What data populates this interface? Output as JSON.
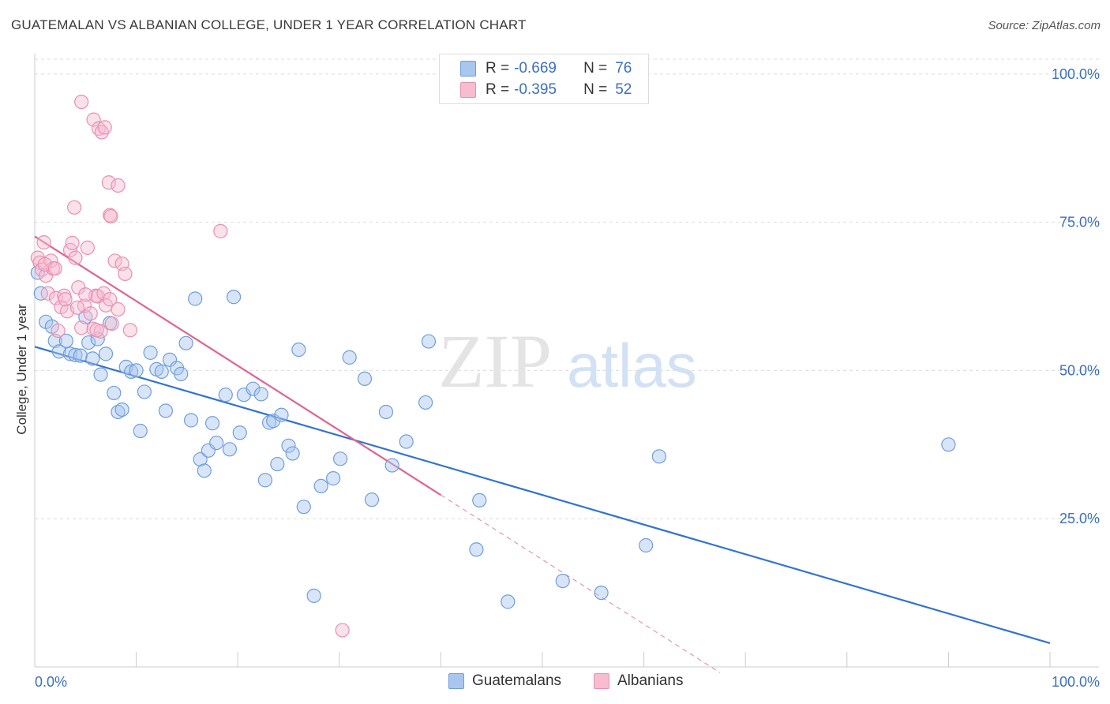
{
  "header": {
    "title": "GUATEMALAN VS ALBANIAN COLLEGE, UNDER 1 YEAR CORRELATION CHART",
    "source": "Source: ZipAtlas.com"
  },
  "legend": {
    "rows": [
      {
        "r_label": "R =",
        "r_value": "-0.669",
        "n_label": "N =",
        "n_value": "76"
      },
      {
        "r_label": "R =",
        "r_value": "-0.395",
        "n_label": "N =",
        "n_value": "52"
      }
    ]
  },
  "bottom_legend": {
    "guatemalans": "Guatemalans",
    "albanians": "Albanians"
  },
  "colors": {
    "blue_fill": "#a9c6ef",
    "blue_stroke": "#6f9edc",
    "blue_line": "#2f74cf",
    "pink_fill": "#f7bcd0",
    "pink_stroke": "#ea8fb0",
    "pink_line": "#e0648f",
    "axis_label": "#3a6fc4",
    "grid": "#dcdcdc"
  },
  "watermark": {
    "zip": "ZIP",
    "atlas": "atlas"
  },
  "chart_data": {
    "type": "scatter",
    "title": "GUATEMALAN VS ALBANIAN COLLEGE, UNDER 1 YEAR CORRELATION CHART",
    "xlabel": "",
    "ylabel": "College, Under 1 year",
    "xlim": [
      0,
      100
    ],
    "ylim": [
      0,
      102.5
    ],
    "x_tick_labels": {
      "left": "0.0%",
      "right": "100.0%"
    },
    "y_ticks": [
      {
        "value": 25,
        "label": "25.0%"
      },
      {
        "value": 50,
        "label": "50.0%"
      },
      {
        "value": 75,
        "label": "75.0%"
      },
      {
        "value": 100,
        "label": "100.0%"
      }
    ],
    "grid": true,
    "series": [
      {
        "name": "Guatemalans",
        "color": "blue",
        "r": -0.669,
        "n": 76,
        "trend": {
          "x0": 0,
          "y0": 54.0,
          "x1": 100,
          "y1": 4.0,
          "dashed_from": null
        },
        "points": [
          [
            0.6,
            63
          ],
          [
            1.1,
            58.2
          ],
          [
            1.7,
            57.4
          ],
          [
            2.0,
            55.0
          ],
          [
            2.4,
            53.2
          ],
          [
            3.1,
            55.0
          ],
          [
            3.5,
            52.8
          ],
          [
            4.0,
            52.6
          ],
          [
            4.5,
            52.5
          ],
          [
            5.0,
            59.0
          ],
          [
            5.3,
            54.7
          ],
          [
            5.7,
            52.0
          ],
          [
            6.2,
            55.3
          ],
          [
            6.5,
            49.3
          ],
          [
            7.0,
            52.8
          ],
          [
            7.4,
            58.0
          ],
          [
            7.8,
            46.2
          ],
          [
            8.2,
            43.0
          ],
          [
            8.6,
            43.4
          ],
          [
            9.0,
            50.6
          ],
          [
            9.5,
            49.8
          ],
          [
            10.0,
            50.0
          ],
          [
            10.4,
            39.8
          ],
          [
            10.8,
            46.4
          ],
          [
            11.4,
            53.0
          ],
          [
            12.0,
            50.2
          ],
          [
            12.5,
            49.8
          ],
          [
            12.9,
            43.2
          ],
          [
            13.3,
            51.8
          ],
          [
            14.0,
            50.4
          ],
          [
            14.4,
            49.4
          ],
          [
            14.9,
            54.6
          ],
          [
            15.4,
            41.6
          ],
          [
            15.8,
            62.1
          ],
          [
            16.3,
            35.0
          ],
          [
            16.7,
            33.1
          ],
          [
            17.1,
            36.5
          ],
          [
            17.5,
            41.1
          ],
          [
            17.9,
            37.8
          ],
          [
            18.8,
            45.9
          ],
          [
            19.2,
            36.7
          ],
          [
            19.6,
            62.4
          ],
          [
            20.2,
            39.5
          ],
          [
            20.6,
            45.9
          ],
          [
            21.5,
            46.9
          ],
          [
            22.3,
            46.0
          ],
          [
            22.7,
            31.5
          ],
          [
            23.1,
            41.2
          ],
          [
            23.5,
            41.5
          ],
          [
            23.9,
            34.2
          ],
          [
            24.3,
            42.5
          ],
          [
            25.0,
            37.3
          ],
          [
            25.4,
            36.0
          ],
          [
            26.0,
            53.5
          ],
          [
            26.5,
            27.0
          ],
          [
            27.5,
            12.0
          ],
          [
            28.2,
            30.5
          ],
          [
            29.4,
            31.8
          ],
          [
            30.1,
            35.1
          ],
          [
            31.0,
            52.2
          ],
          [
            32.5,
            48.6
          ],
          [
            33.2,
            28.2
          ],
          [
            34.6,
            43.0
          ],
          [
            35.2,
            34.0
          ],
          [
            36.6,
            38.0
          ],
          [
            38.5,
            44.6
          ],
          [
            38.8,
            54.9
          ],
          [
            43.5,
            19.8
          ],
          [
            43.8,
            28.1
          ],
          [
            46.6,
            11.0
          ],
          [
            52.0,
            14.5
          ],
          [
            55.8,
            12.5
          ],
          [
            60.2,
            20.5
          ],
          [
            61.5,
            35.5
          ],
          [
            90.0,
            37.5
          ],
          [
            0.3,
            66.5
          ]
        ]
      },
      {
        "name": "Albanians",
        "color": "pink",
        "r": -0.395,
        "n": 52,
        "trend": {
          "x0": 0,
          "y0": 72.6,
          "x1": 40,
          "y1": 29.0,
          "dashed_to_x": 67.5
        },
        "points": [
          [
            0.3,
            69.0
          ],
          [
            0.5,
            68.2
          ],
          [
            0.7,
            67.0
          ],
          [
            0.9,
            71.6
          ],
          [
            1.1,
            66.0
          ],
          [
            1.3,
            63.0
          ],
          [
            1.6,
            68.5
          ],
          [
            1.8,
            67.2
          ],
          [
            2.1,
            62.2
          ],
          [
            2.3,
            56.7
          ],
          [
            2.6,
            60.7
          ],
          [
            2.9,
            62.6
          ],
          [
            3.2,
            60.0
          ],
          [
            3.5,
            70.3
          ],
          [
            3.7,
            71.5
          ],
          [
            3.9,
            77.5
          ],
          [
            4.0,
            69.0
          ],
          [
            4.3,
            64.0
          ],
          [
            4.6,
            57.2
          ],
          [
            4.9,
            60.9
          ],
          [
            5.2,
            70.7
          ],
          [
            5.5,
            59.6
          ],
          [
            5.8,
            57.0
          ],
          [
            6.0,
            62.6
          ],
          [
            6.2,
            62.5
          ],
          [
            6.5,
            56.6
          ],
          [
            6.8,
            63.0
          ],
          [
            7.0,
            61.0
          ],
          [
            7.3,
            81.7
          ],
          [
            7.6,
            57.9
          ],
          [
            7.9,
            68.5
          ],
          [
            8.2,
            60.3
          ],
          [
            4.6,
            95.3
          ],
          [
            5.8,
            92.3
          ],
          [
            6.3,
            90.8
          ],
          [
            6.6,
            90.2
          ],
          [
            6.9,
            91.0
          ],
          [
            7.4,
            76.2
          ],
          [
            7.5,
            76.0
          ],
          [
            8.2,
            81.2
          ],
          [
            8.6,
            68.0
          ],
          [
            8.9,
            66.3
          ],
          [
            9.4,
            56.8
          ],
          [
            18.3,
            73.5
          ],
          [
            30.3,
            6.2
          ],
          [
            7.4,
            62.0
          ],
          [
            1.0,
            67.9
          ],
          [
            2.0,
            67.2
          ],
          [
            3.0,
            62.0
          ],
          [
            5.0,
            62.8
          ],
          [
            6.1,
            56.8
          ],
          [
            4.2,
            60.6
          ]
        ]
      }
    ]
  }
}
